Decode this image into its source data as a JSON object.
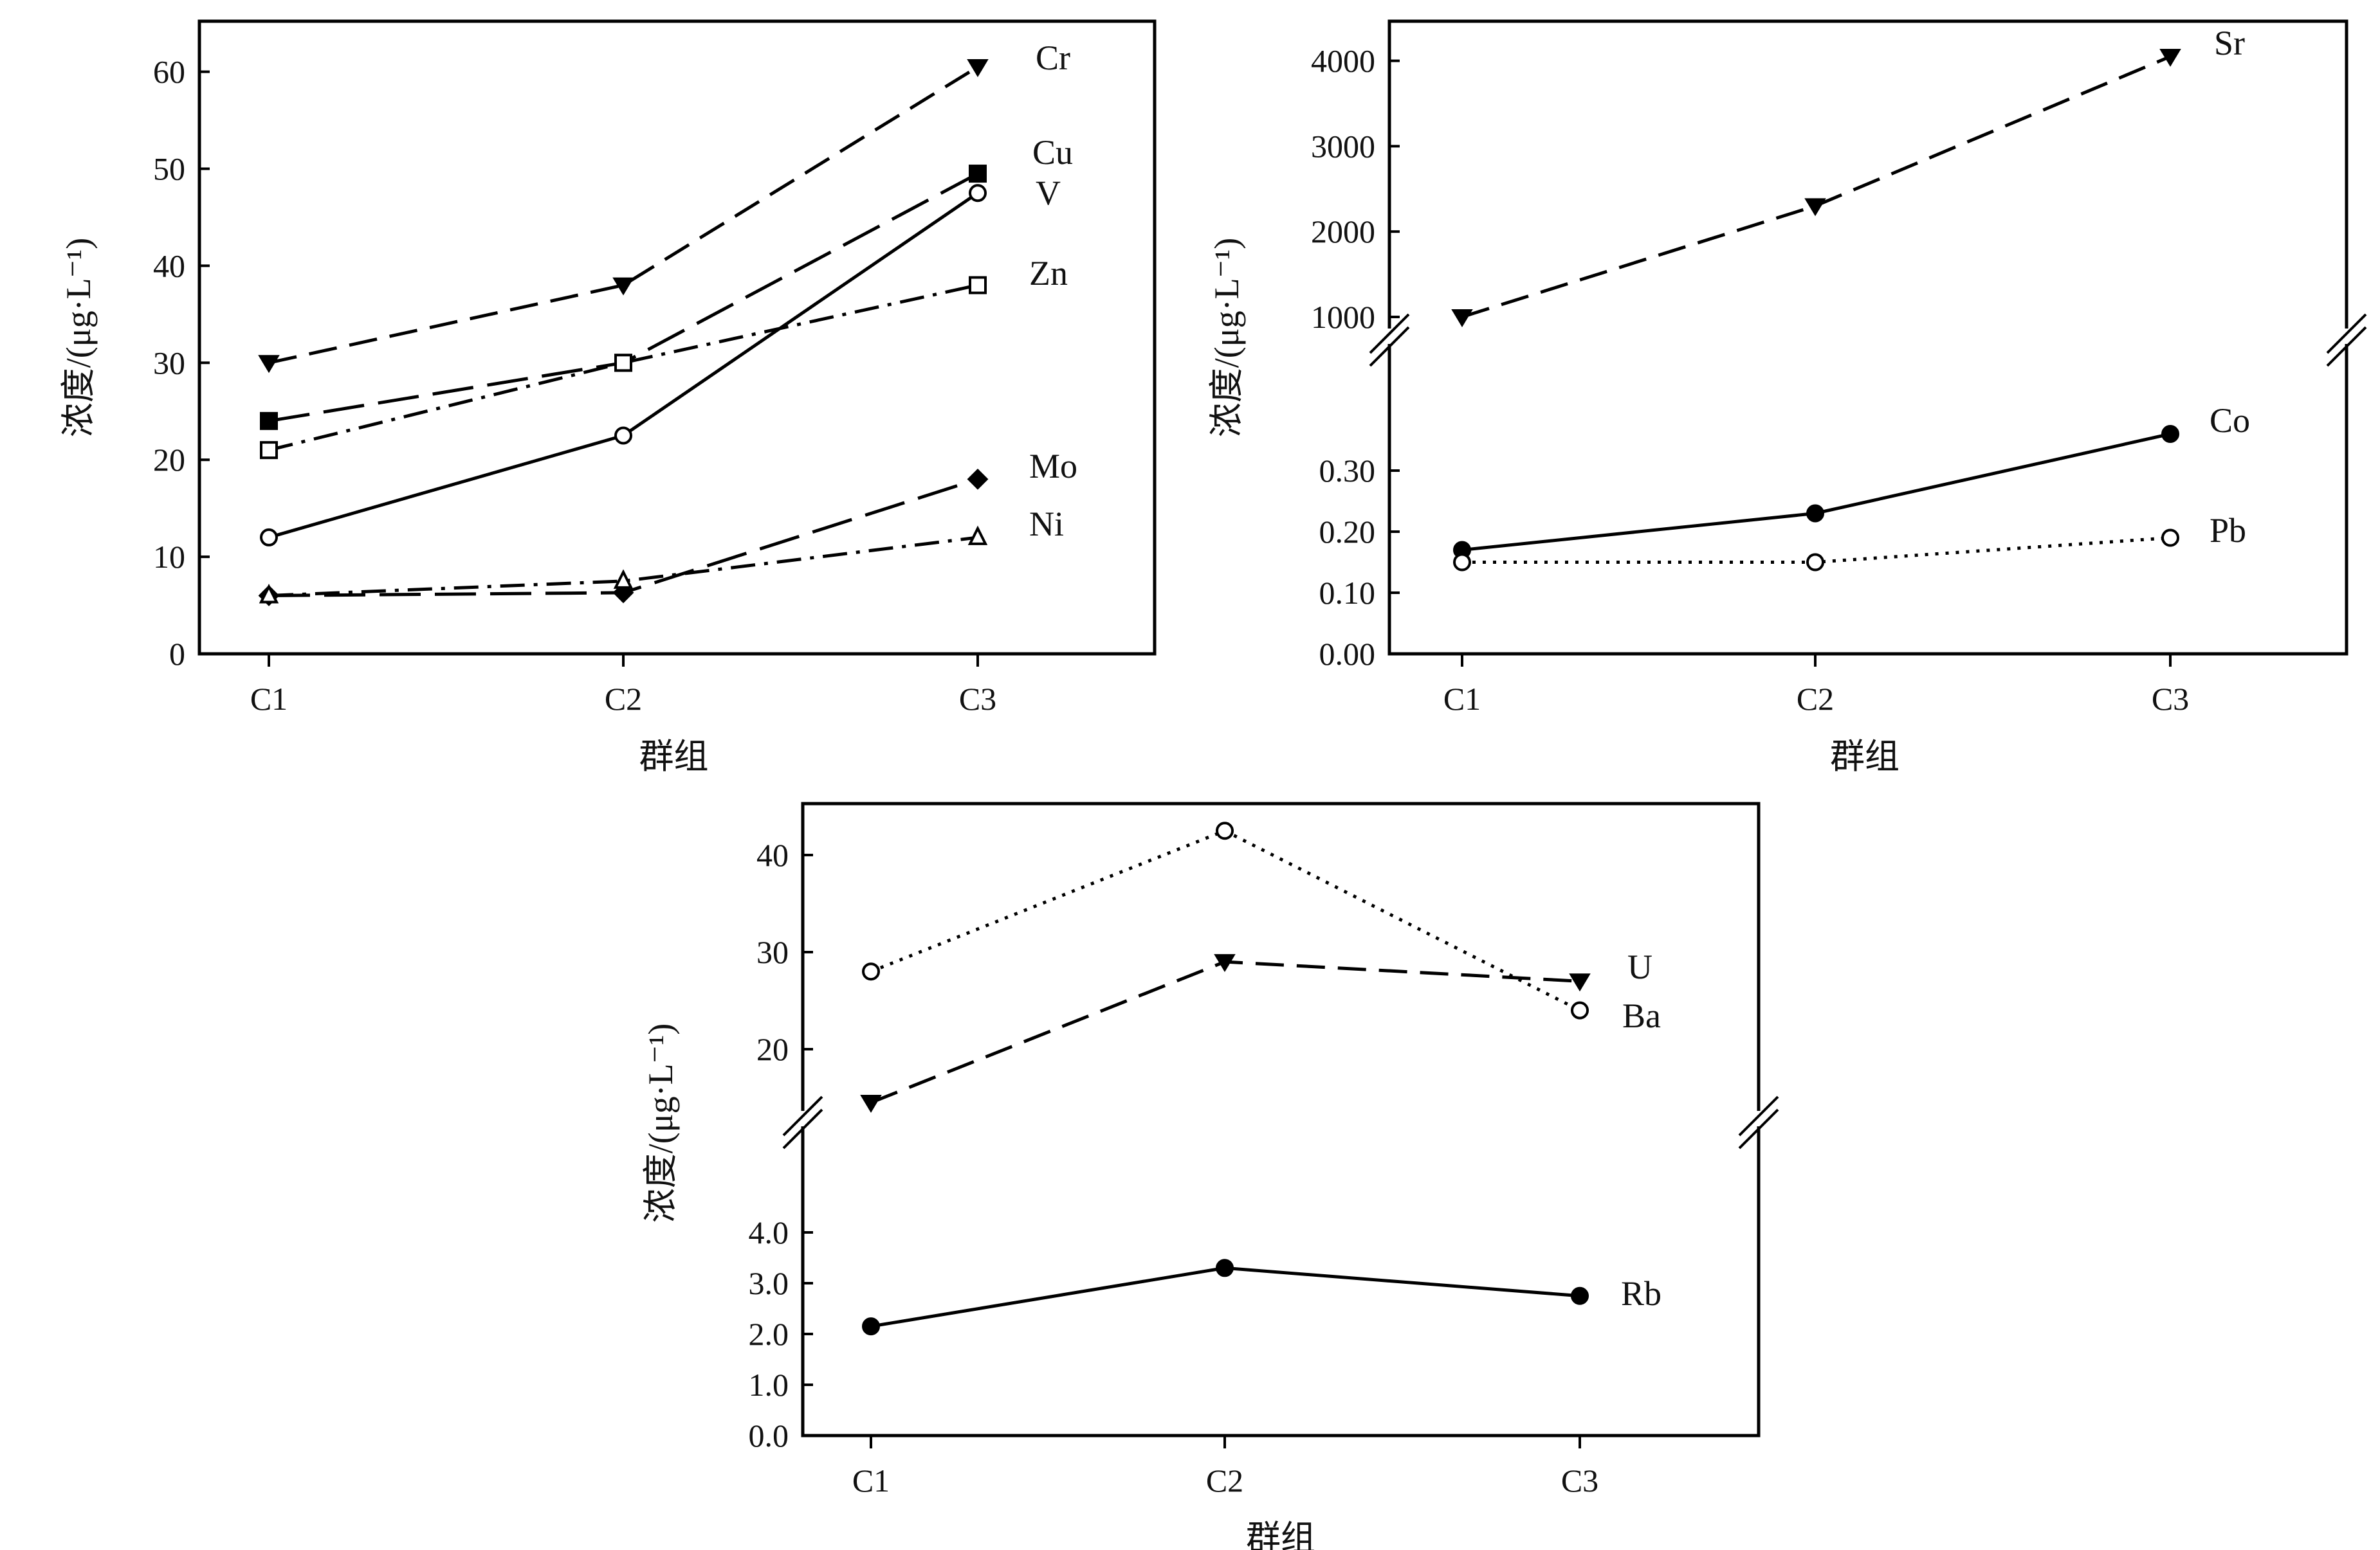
{
  "chart_data": [
    {
      "type": "line",
      "categories": [
        "C1",
        "C2",
        "C3"
      ],
      "xlabel": "群组",
      "ylabel": "浓度/(μg·L⁻¹)",
      "ylim": [
        0,
        65
      ],
      "yticks": [
        "0",
        "10",
        "20",
        "30",
        "40",
        "50",
        "60"
      ],
      "grid": false,
      "series": [
        {
          "name": "Cr",
          "values": [
            30,
            38,
            60.5
          ],
          "marker": "triangle-down-filled",
          "line": "dashed"
        },
        {
          "name": "Cu",
          "values": [
            24,
            30,
            49.5
          ],
          "marker": "square-filled",
          "line": "longdash"
        },
        {
          "name": "V",
          "values": [
            12,
            22.5,
            47.5
          ],
          "marker": "circle-open",
          "line": "solid"
        },
        {
          "name": "Zn",
          "values": [
            21,
            30,
            38
          ],
          "marker": "square-open",
          "line": "dashdot"
        },
        {
          "name": "Mo",
          "values": [
            6,
            6.3,
            18
          ],
          "marker": "diamond-filled",
          "line": "longdash"
        },
        {
          "name": "Ni",
          "values": [
            6,
            7.5,
            12
          ],
          "marker": "triangle-up-open",
          "line": "dashdot"
        }
      ]
    },
    {
      "type": "line",
      "categories": [
        "C1",
        "C2",
        "C3"
      ],
      "xlabel": "群组",
      "ylabel": "浓度/(μg·L⁻¹)",
      "axis_break": true,
      "upper_ylim": [
        1000,
        4500
      ],
      "upper_yticks": [
        "1000",
        "2000",
        "3000",
        "4000"
      ],
      "lower_ylim": [
        0,
        0.4
      ],
      "lower_yticks": [
        "0.00",
        "0.10",
        "0.20",
        "0.30"
      ],
      "grid": false,
      "series": [
        {
          "name": "Sr",
          "values": [
            1000,
            2300,
            4050
          ],
          "segment": "upper",
          "marker": "triangle-down-filled",
          "line": "dashed"
        },
        {
          "name": "Co",
          "values": [
            0.17,
            0.23,
            0.36
          ],
          "segment": "lower",
          "marker": "circle-filled",
          "line": "solid"
        },
        {
          "name": "Pb",
          "values": [
            0.15,
            0.15,
            0.19
          ],
          "segment": "lower",
          "marker": "circle-open",
          "line": "dotted"
        }
      ]
    },
    {
      "type": "line",
      "categories": [
        "C1",
        "C2",
        "C3"
      ],
      "xlabel": "群组",
      "ylabel": "浓度/(μg·L⁻¹)",
      "axis_break": true,
      "upper_ylim": [
        15,
        45
      ],
      "upper_yticks": [
        "20",
        "30",
        "40"
      ],
      "lower_ylim": [
        0,
        5.0
      ],
      "lower_yticks": [
        "0.0",
        "1.0",
        "2.0",
        "3.0",
        "4.0"
      ],
      "grid": false,
      "series": [
        {
          "name": "Ba",
          "values": [
            28,
            42.5,
            24
          ],
          "segment": "upper",
          "marker": "circle-open",
          "line": "dotted"
        },
        {
          "name": "U",
          "values": [
            14.5,
            29,
            27
          ],
          "segment": "upper",
          "marker": "triangle-down-filled",
          "line": "dashed"
        },
        {
          "name": "Rb",
          "values": [
            2.15,
            3.3,
            2.75
          ],
          "segment": "lower",
          "marker": "circle-filled",
          "line": "solid"
        }
      ]
    }
  ]
}
